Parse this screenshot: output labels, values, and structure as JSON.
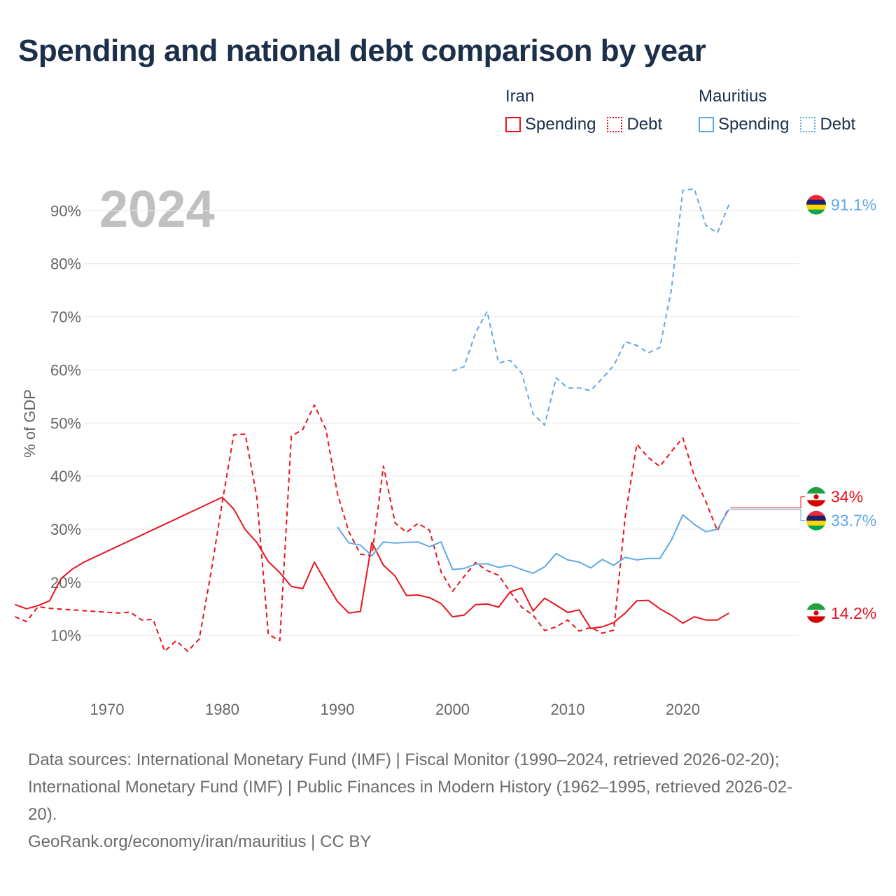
{
  "title": "Spending and national debt comparison by year",
  "legend": {
    "groups": [
      {
        "name": "Iran",
        "items": [
          {
            "label": "Spending"
          },
          {
            "label": "Debt"
          }
        ]
      },
      {
        "name": "Mauritius",
        "items": [
          {
            "label": "Spending"
          },
          {
            "label": "Debt"
          }
        ]
      }
    ]
  },
  "colors": {
    "iran": "#e8141c",
    "mauritius": "#5fa8e8",
    "grid": "#e6e6e6",
    "year_label": "#c0c0c0"
  },
  "chart_data": {
    "type": "line",
    "year_label": "2024",
    "ylabel": "% of GDP",
    "xlim": [
      1962,
      2024
    ],
    "ylim": [
      0,
      100
    ],
    "x_ticks": [
      1970,
      1980,
      1990,
      2000,
      2010,
      2020
    ],
    "x_tick_labels": [
      "1970",
      "1980",
      "1990",
      "2000",
      "2010",
      "2020"
    ],
    "y_ticks": [
      10,
      20,
      30,
      40,
      50,
      60,
      70,
      80,
      90
    ],
    "y_tick_labels": [
      "10%",
      "20%",
      "30%",
      "40%",
      "50%",
      "60%",
      "70%",
      "80%",
      "90%"
    ],
    "series": [
      {
        "name": "Iran Spending",
        "country": "Iran",
        "metric": "Spending",
        "style": "solid",
        "color": "#e8141c",
        "end_label": "14.2%",
        "x": [
          1962,
          1963,
          1964,
          1965,
          1966,
          1967,
          1968,
          1980,
          1981,
          1982,
          1983,
          1984,
          1985,
          1986,
          1987,
          1988,
          1989,
          1990,
          1991,
          1992,
          1993,
          1994,
          1995,
          1996,
          1997,
          1998,
          1999,
          2000,
          2001,
          2002,
          2003,
          2004,
          2005,
          2006,
          2007,
          2008,
          2009,
          2010,
          2011,
          2012,
          2013,
          2014,
          2015,
          2016,
          2017,
          2018,
          2019,
          2020,
          2021,
          2022,
          2023,
          2024
        ],
        "y": [
          15.8,
          15.0,
          15.6,
          16.5,
          20.7,
          22.5,
          23.8,
          36.0,
          33.8,
          29.9,
          27.5,
          23.9,
          21.8,
          19.2,
          18.8,
          23.8,
          20.0,
          16.4,
          14.2,
          14.5,
          27.5,
          23.2,
          21.2,
          17.5,
          17.6,
          17.1,
          16.0,
          13.5,
          13.8,
          15.8,
          15.9,
          15.3,
          18.2,
          18.9,
          14.6,
          17.0,
          15.7,
          14.3,
          14.8,
          11.3,
          11.6,
          12.4,
          14.2,
          16.5,
          16.6,
          15.0,
          13.8,
          12.3,
          13.5,
          12.9,
          12.9,
          14.2
        ]
      },
      {
        "name": "Iran Debt",
        "country": "Iran",
        "metric": "Debt",
        "style": "dashed",
        "color": "#e8141c",
        "end_label": "34%",
        "x": [
          1962,
          1963,
          1964,
          1965,
          1971,
          1972,
          1973,
          1974,
          1975,
          1976,
          1977,
          1978,
          1979,
          1980,
          1981,
          1982,
          1983,
          1984,
          1985,
          1986,
          1987,
          1988,
          1989,
          1990,
          1991,
          1992,
          1993,
          1994,
          1995,
          1996,
          1997,
          1998,
          1999,
          2000,
          2001,
          2002,
          2003,
          2004,
          2005,
          2006,
          2007,
          2008,
          2009,
          2010,
          2011,
          2012,
          2013,
          2014,
          2015,
          2016,
          2017,
          2018,
          2019,
          2020,
          2021,
          2022,
          2023,
          2024
        ],
        "y": [
          13.5,
          12.6,
          15.4,
          15.1,
          14.2,
          14.4,
          12.9,
          13.0,
          7.0,
          9.0,
          7.0,
          9.3,
          21.5,
          35.0,
          47.8,
          47.9,
          36.0,
          10.2,
          9.0,
          47.5,
          48.8,
          53.4,
          48.8,
          36.7,
          29.5,
          25.3,
          25.0,
          41.9,
          31.2,
          29.4,
          31.1,
          29.8,
          22.0,
          18.3,
          21.1,
          23.7,
          22.2,
          21.3,
          18.2,
          15.3,
          13.8,
          10.9,
          11.6,
          12.9,
          10.8,
          11.5,
          10.4,
          11.0,
          32.5,
          46.0,
          43.5,
          41.8,
          44.6,
          47.2,
          40.0,
          35.2,
          29.7,
          34.0
        ]
      },
      {
        "name": "Mauritius Spending",
        "country": "Mauritius",
        "metric": "Spending",
        "style": "solid",
        "color": "#5fa8e8",
        "end_label": "33.7%",
        "x": [
          1990,
          1991,
          1992,
          1993,
          1994,
          1995,
          1996,
          1997,
          1998,
          1999,
          2000,
          2001,
          2002,
          2003,
          2004,
          2005,
          2006,
          2007,
          2008,
          2009,
          2010,
          2011,
          2012,
          2013,
          2014,
          2015,
          2016,
          2017,
          2018,
          2019,
          2020,
          2021,
          2022,
          2023,
          2024
        ],
        "y": [
          30.4,
          27.4,
          27.0,
          25.0,
          27.6,
          27.4,
          27.5,
          27.6,
          26.7,
          27.6,
          22.4,
          22.6,
          23.4,
          23.5,
          22.8,
          23.2,
          22.4,
          21.7,
          22.9,
          25.4,
          24.2,
          23.8,
          22.7,
          24.3,
          23.2,
          24.7,
          24.2,
          24.5,
          24.5,
          27.9,
          32.7,
          30.9,
          29.5,
          30.0,
          33.7
        ]
      },
      {
        "name": "Mauritius Debt",
        "country": "Mauritius",
        "metric": "Debt",
        "style": "dashed",
        "color": "#5fa8e8",
        "end_label": "91.1%",
        "x": [
          2000,
          2001,
          2002,
          2003,
          2004,
          2005,
          2006,
          2007,
          2008,
          2009,
          2010,
          2011,
          2012,
          2013,
          2014,
          2015,
          2016,
          2017,
          2018,
          2019,
          2020,
          2021,
          2022,
          2023,
          2024
        ],
        "y": [
          59.8,
          60.6,
          67.0,
          71.0,
          61.3,
          61.8,
          59.4,
          51.7,
          49.6,
          58.5,
          56.6,
          56.6,
          56.1,
          58.4,
          60.8,
          65.3,
          64.6,
          63.2,
          64.2,
          75.0,
          93.8,
          94.1,
          87.2,
          85.8,
          91.1
        ]
      }
    ]
  },
  "footer": {
    "sources_line1": "Data sources: International Monetary Fund (IMF) | Fiscal Monitor (1990–2024, retrieved 2026-02-20);",
    "sources_line2": "International Monetary Fund (IMF) | Public Finances in Modern History (1962–1995, retrieved 2026-02-",
    "sources_line3": "20).",
    "credit": "GeoRank.org/economy/iran/mauritius | CC BY"
  }
}
